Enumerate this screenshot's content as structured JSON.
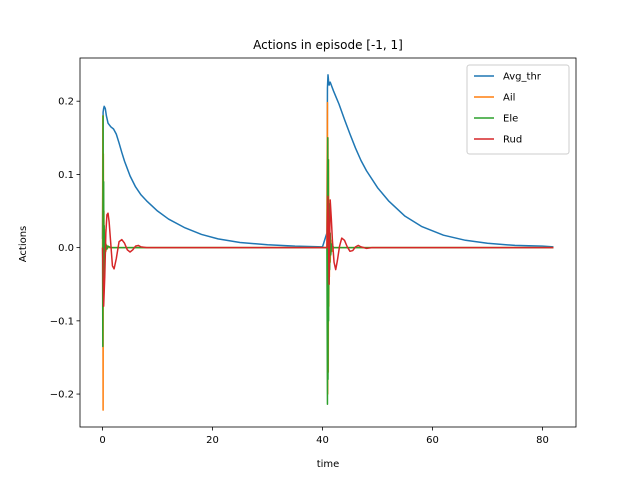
{
  "chart_data": {
    "type": "line",
    "title": "Actions in episode [-1, 1]",
    "xlabel": "time",
    "ylabel": "Actions",
    "xlim": [
      -4.1,
      86.1
    ],
    "ylim": [
      -0.245,
      0.259
    ],
    "xticks": [
      0,
      20,
      40,
      60,
      80
    ],
    "xtick_labels": [
      "0",
      "20",
      "40",
      "60",
      "80"
    ],
    "yticks": [
      -0.2,
      -0.1,
      0.0,
      0.1,
      0.2
    ],
    "ytick_labels": [
      "−0.2",
      "−0.1",
      "0.0",
      "0.1",
      "0.2"
    ],
    "grid": false,
    "legend_position": "top-right",
    "series": [
      {
        "name": "Avg_thr",
        "color": "#1f77b4",
        "x": [
          0,
          0.1,
          0.2,
          0.3,
          0.5,
          0.7,
          1,
          1.5,
          2,
          2.5,
          3,
          3.5,
          4,
          5,
          6,
          7,
          8,
          10,
          12,
          15,
          18,
          21,
          25,
          30,
          35,
          40,
          40.8,
          40.9,
          41,
          41.1,
          41.2,
          41.4,
          41.6,
          42,
          42.5,
          43,
          44,
          45,
          46,
          47,
          48,
          50,
          52,
          55,
          58,
          62,
          66,
          70,
          75,
          80,
          82
        ],
        "values": [
          0.012,
          0.185,
          0.19,
          0.193,
          0.19,
          0.18,
          0.17,
          0.165,
          0.162,
          0.155,
          0.143,
          0.13,
          0.118,
          0.098,
          0.083,
          0.072,
          0.064,
          0.05,
          0.039,
          0.027,
          0.018,
          0.012,
          0.007,
          0.004,
          0.002,
          0.001,
          0.02,
          0.218,
          0.236,
          0.228,
          0.222,
          0.226,
          0.222,
          0.214,
          0.205,
          0.196,
          0.175,
          0.155,
          0.136,
          0.119,
          0.105,
          0.082,
          0.064,
          0.043,
          0.029,
          0.017,
          0.01,
          0.006,
          0.003,
          0.002,
          0.001
        ]
      },
      {
        "name": "Ail",
        "color": "#ff7f0e",
        "x": [
          0,
          0.05,
          0.1,
          0.15,
          0.2,
          0.25,
          0.3,
          0.35,
          0.4,
          0.5,
          0.6,
          0.8,
          1,
          1.5,
          2,
          3,
          40,
          40.8,
          40.9,
          40.95,
          41,
          41.05,
          41.1,
          41.15,
          41.2,
          41.25,
          41.3,
          41.4,
          41.5,
          41.7,
          42,
          43,
          82
        ],
        "values": [
          0,
          0.18,
          -0.222,
          0.128,
          -0.06,
          0.05,
          -0.03,
          0.025,
          -0.015,
          0.01,
          -0.005,
          0.003,
          0,
          0,
          0,
          0,
          0,
          0,
          0.198,
          -0.2,
          0.15,
          -0.17,
          0.12,
          -0.08,
          0.06,
          -0.04,
          0.03,
          -0.02,
          0.01,
          -0.005,
          0,
          0,
          0
        ]
      },
      {
        "name": "Ele",
        "color": "#2ca02c",
        "x": [
          0,
          0.05,
          0.1,
          0.15,
          0.2,
          0.25,
          0.3,
          0.35,
          0.4,
          0.5,
          0.6,
          0.8,
          1,
          1.5,
          2,
          3,
          40,
          40.8,
          40.9,
          40.95,
          41,
          41.05,
          41.1,
          41.15,
          41.2,
          41.25,
          41.3,
          41.4,
          41.5,
          41.7,
          42,
          43,
          82
        ],
        "values": [
          0,
          -0.135,
          0.18,
          -0.06,
          0.09,
          -0.04,
          0.03,
          -0.02,
          0.015,
          -0.008,
          0.005,
          -0.002,
          0.002,
          0,
          0,
          0,
          0,
          0,
          -0.214,
          0.15,
          -0.18,
          0.12,
          -0.1,
          0.06,
          -0.05,
          0.04,
          -0.03,
          0.02,
          -0.01,
          0.005,
          0,
          0,
          0
        ]
      },
      {
        "name": "Rud",
        "color": "#d62728",
        "x": [
          0,
          0.2,
          0.4,
          0.6,
          0.8,
          1,
          1.2,
          1.5,
          1.8,
          2.1,
          2.5,
          3,
          3.5,
          4,
          4.5,
          5,
          5.5,
          6,
          6.5,
          7,
          8,
          9,
          10,
          20,
          40,
          40.8,
          41,
          41.2,
          41.4,
          41.6,
          41.8,
          42.1,
          42.4,
          42.7,
          43.1,
          43.5,
          44,
          44.5,
          45,
          45.5,
          46,
          46.5,
          47,
          48,
          49,
          50,
          82
        ],
        "values": [
          0,
          -0.08,
          -0.04,
          0.02,
          0.045,
          0.047,
          0.035,
          0.005,
          -0.025,
          -0.029,
          -0.015,
          0.008,
          0.011,
          0.006,
          -0.003,
          -0.006,
          -0.003,
          0.002,
          0.003,
          0.001,
          0,
          0,
          0,
          0,
          0,
          0,
          0.07,
          -0.05,
          0.065,
          0.04,
          0.01,
          -0.02,
          -0.03,
          -0.018,
          0.002,
          0.013,
          0.01,
          0.001,
          -0.005,
          -0.004,
          0.001,
          0.003,
          0.001,
          -0.001,
          0,
          0,
          0
        ]
      }
    ]
  }
}
